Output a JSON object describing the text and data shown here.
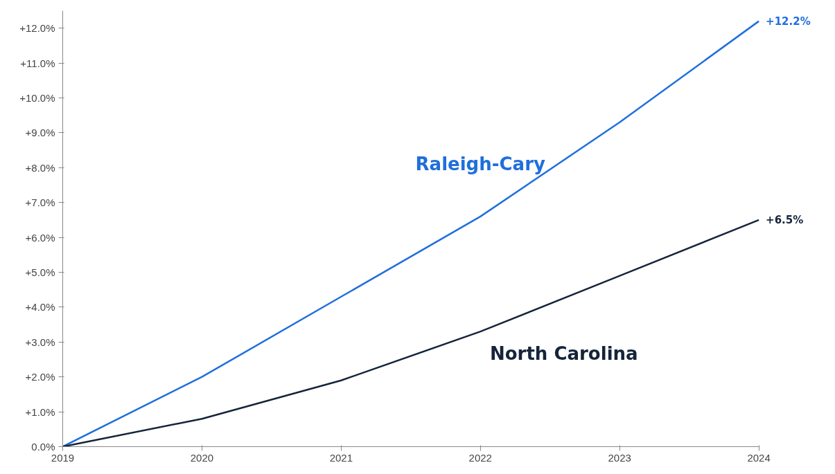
{
  "chart_data": {
    "type": "line",
    "x": [
      2019,
      2020,
      2021,
      2022,
      2023,
      2024
    ],
    "series": [
      {
        "name": "Raleigh-Cary",
        "color": "#1f6fdc",
        "values": [
          0,
          2.0,
          4.3,
          6.6,
          9.3,
          12.2
        ],
        "value_labels": [
          null,
          null,
          null,
          null,
          null,
          "+12.2%"
        ]
      },
      {
        "name": "North Carolina",
        "color": "#15243a",
        "values": [
          0,
          0.8,
          1.9,
          3.3,
          4.9,
          6.5
        ],
        "value_labels": [
          null,
          null,
          null,
          null,
          null,
          "+6.5%"
        ]
      }
    ],
    "xlim": [
      2019,
      2024
    ],
    "xticks": [
      2019,
      2020,
      2021,
      2022,
      2023,
      2024
    ],
    "ylim": [
      0,
      12.5
    ],
    "yticks": [
      {
        "value": 0,
        "label": "0.0%"
      },
      {
        "value": 1,
        "label": "+1.0%"
      },
      {
        "value": 2,
        "label": "+2.0%"
      },
      {
        "value": 3,
        "label": "+3.0%"
      },
      {
        "value": 4,
        "label": "+4.0%"
      },
      {
        "value": 5,
        "label": "+5.0%"
      },
      {
        "value": 6,
        "label": "+6.0%"
      },
      {
        "value": 7,
        "label": "+7.0%"
      },
      {
        "value": 8,
        "label": "+8.0%"
      },
      {
        "value": 9,
        "label": "+9.0%"
      },
      {
        "value": 10,
        "label": "+10.0%"
      },
      {
        "value": 11,
        "label": "+11.0%"
      },
      {
        "value": 12,
        "label": "+12.0%"
      }
    ],
    "grid": false,
    "legend": false,
    "marker": "none",
    "line_style": "solid"
  }
}
